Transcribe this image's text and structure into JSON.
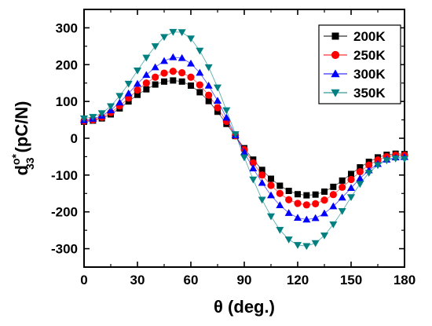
{
  "chart_data": {
    "type": "scatter",
    "title": "",
    "xlabel": "θ (deg.)",
    "ylabel_main": "d",
    "ylabel_sup": "o*",
    "ylabel_sub": "33",
    "ylabel_unit": "(pC/N)",
    "xlim": [
      0,
      180
    ],
    "ylim": [
      -350,
      350
    ],
    "xticks": [
      0,
      30,
      60,
      90,
      120,
      150,
      180
    ],
    "yticks": [
      -300,
      -200,
      -100,
      0,
      100,
      200,
      300
    ],
    "grid": false,
    "legend_position": "top-right",
    "x": [
      0,
      5,
      10,
      15,
      20,
      25,
      30,
      35,
      40,
      45,
      50,
      55,
      60,
      65,
      70,
      75,
      80,
      85,
      90,
      95,
      100,
      105,
      110,
      115,
      120,
      125,
      130,
      135,
      140,
      145,
      150,
      155,
      160,
      165,
      170,
      175,
      180
    ],
    "series": [
      {
        "name": "200K",
        "color": "#000000",
        "marker": "square",
        "values": [
          45,
          48,
          54,
          65,
          81,
          100,
          118,
          133,
          146,
          154,
          157,
          154,
          143,
          125,
          101,
          72,
          39,
          6,
          -27,
          -58,
          -86,
          -110,
          -129,
          -143,
          -152,
          -155,
          -153,
          -145,
          -132,
          -115,
          -97,
          -79,
          -64,
          -52,
          -45,
          -42,
          -43
        ]
      },
      {
        "name": "250K",
        "color": "#ff0000",
        "marker": "circle",
        "values": [
          47,
          50,
          57,
          70,
          88,
          109,
          131,
          150,
          166,
          177,
          182,
          178,
          166,
          145,
          117,
          83,
          46,
          7,
          -31,
          -67,
          -100,
          -128,
          -150,
          -167,
          -177,
          -181,
          -178,
          -168,
          -153,
          -133,
          -112,
          -91,
          -73,
          -59,
          -50,
          -46,
          -46
        ]
      },
      {
        "name": "300K",
        "color": "#0000ff",
        "marker": "triangle-up",
        "values": [
          49,
          53,
          61,
          76,
          97,
          122,
          148,
          172,
          193,
          210,
          220,
          218,
          203,
          178,
          143,
          102,
          56,
          8,
          -38,
          -82,
          -121,
          -155,
          -182,
          -203,
          -216,
          -221,
          -217,
          -204,
          -185,
          -161,
          -135,
          -109,
          -87,
          -70,
          -58,
          -52,
          -51
        ]
      },
      {
        "name": "350K",
        "color": "#008080",
        "marker": "triangle-down",
        "values": [
          54,
          58,
          68,
          87,
          115,
          148,
          184,
          219,
          250,
          275,
          289,
          288,
          271,
          238,
          193,
          138,
          76,
          11,
          -52,
          -112,
          -167,
          -212,
          -249,
          -275,
          -290,
          -293,
          -285,
          -264,
          -234,
          -198,
          -160,
          -124,
          -94,
          -73,
          -60,
          -55,
          -56
        ]
      }
    ]
  }
}
